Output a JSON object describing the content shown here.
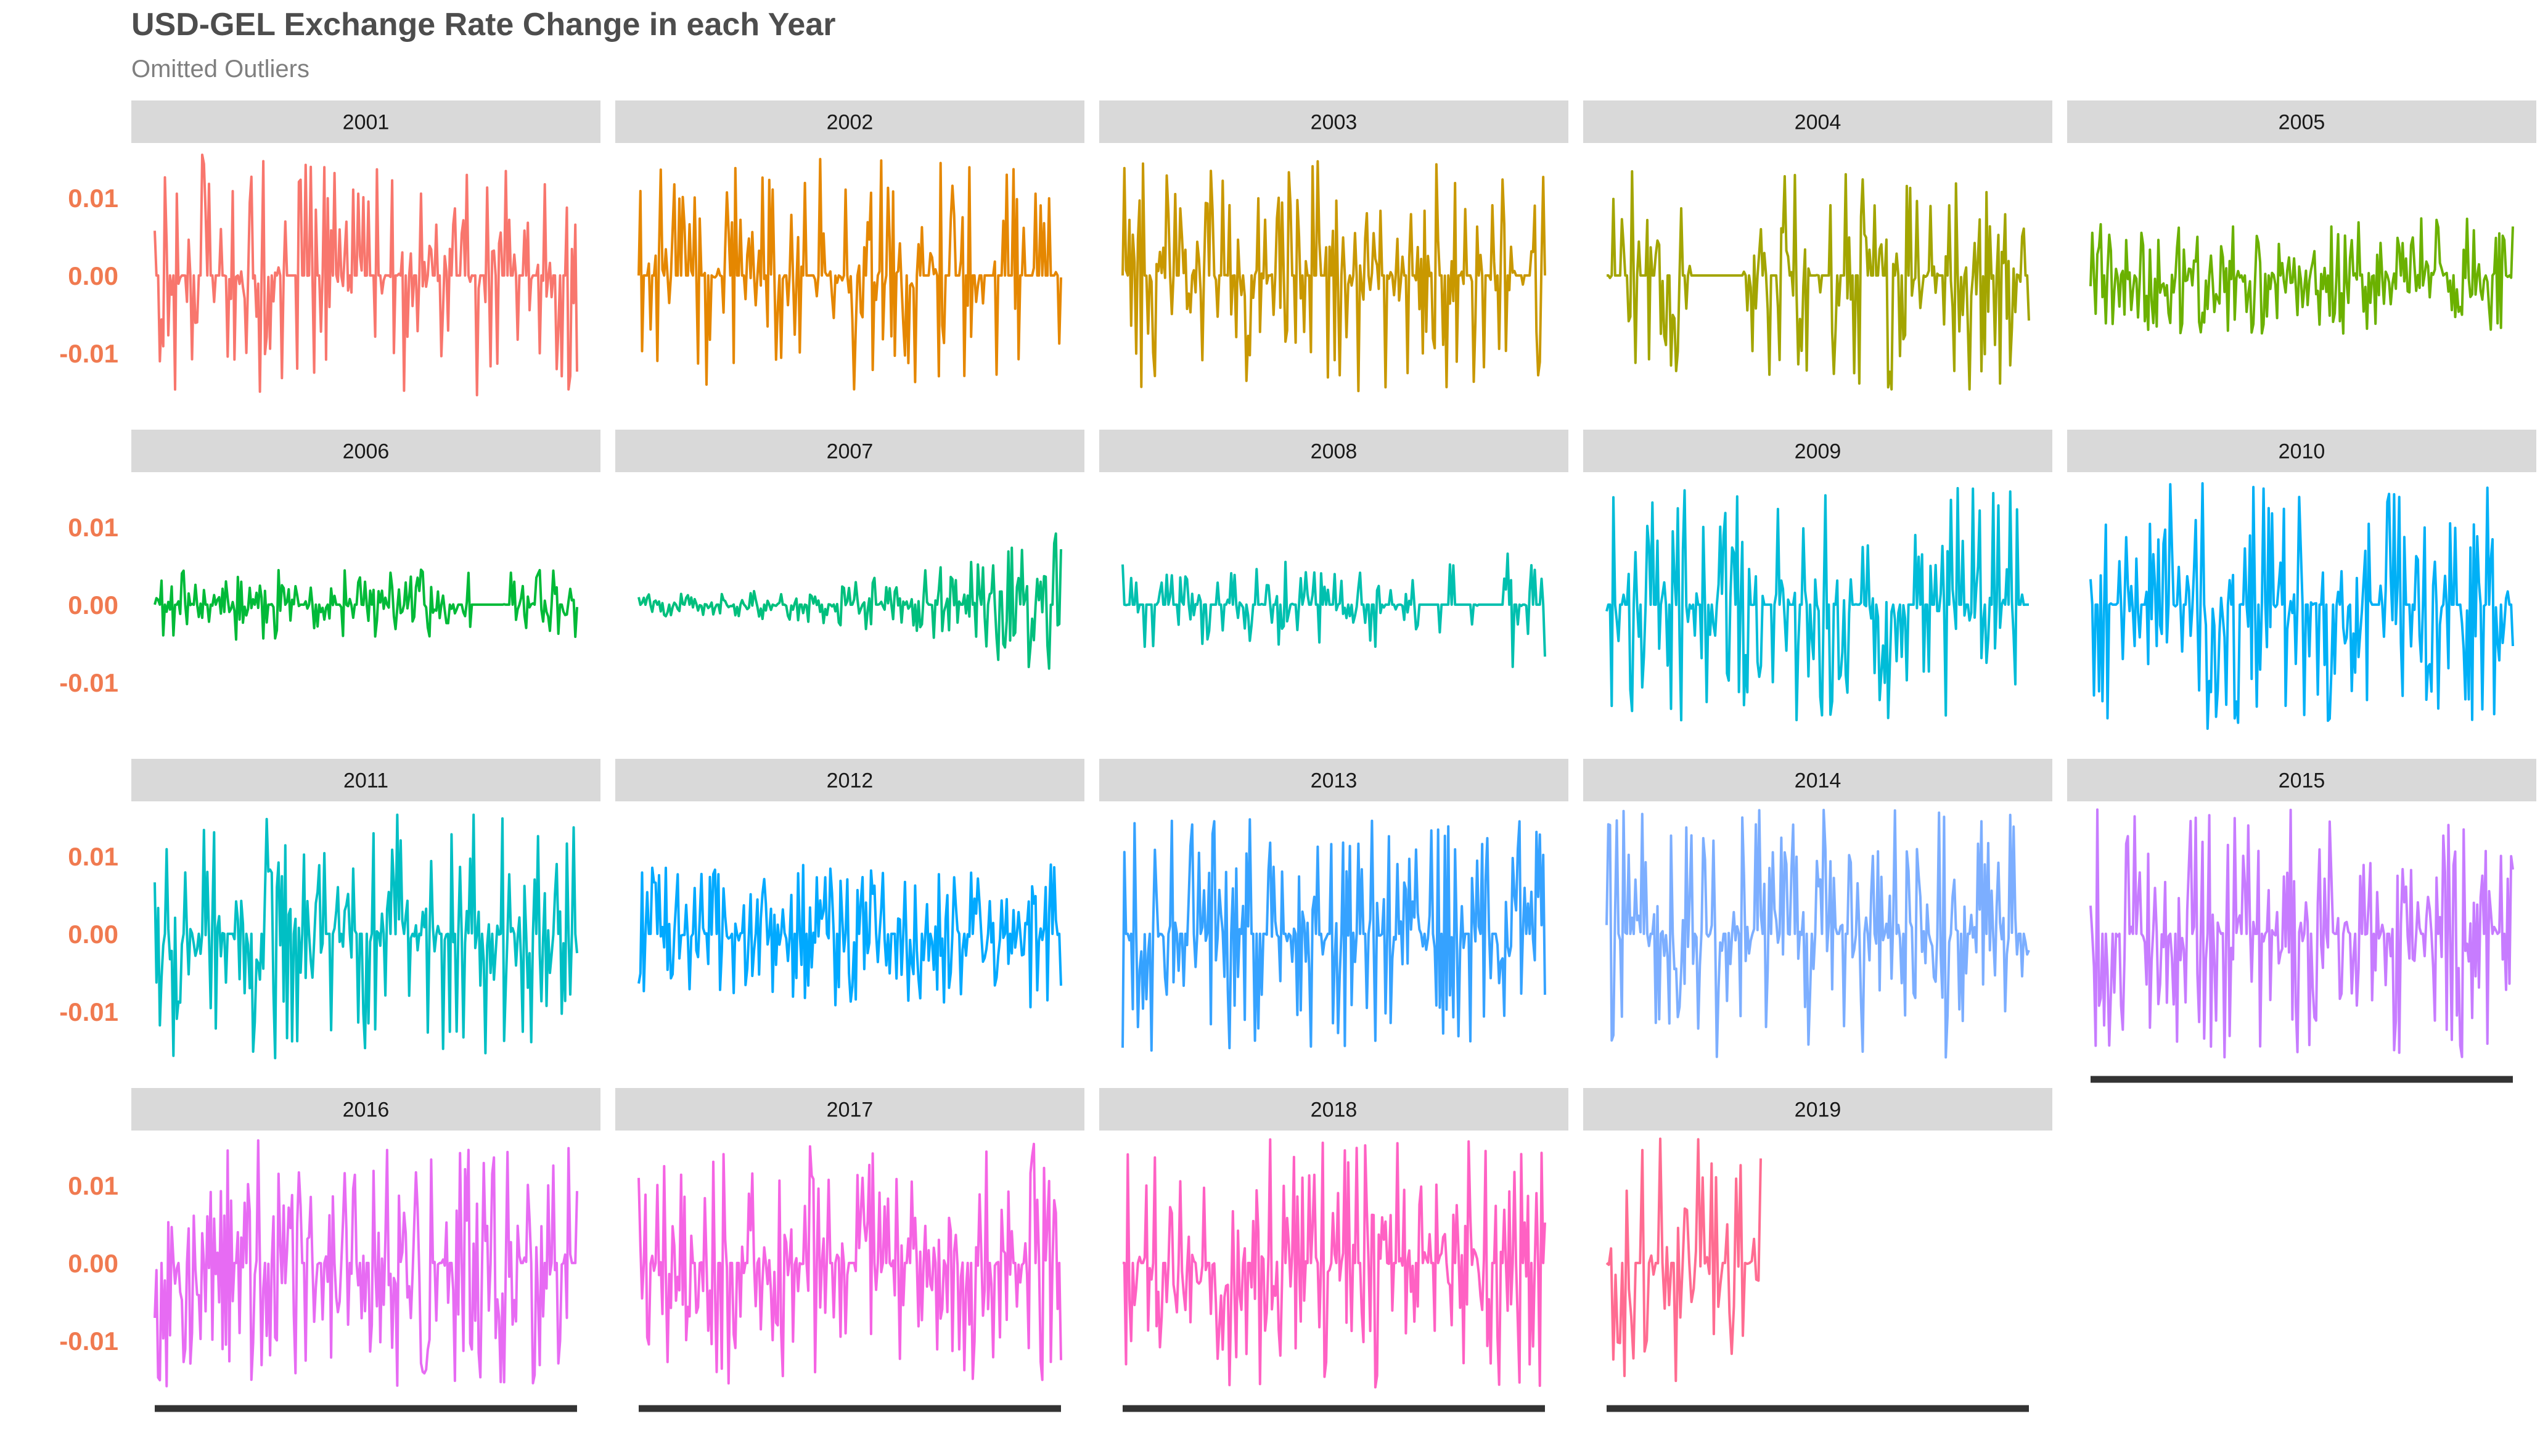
{
  "title": "USD-GEL Exchange Rate Change in each Year",
  "subtitle": "Omitted Outliers",
  "chart_data": {
    "type": "line",
    "title": "USD-GEL Exchange Rate Change in each Year",
    "subtitle": "Omitted Outliers",
    "xlabel": "",
    "ylabel": "",
    "ylim": [
      -0.0165,
      0.0168
    ],
    "y_ticks": [
      {
        "value": 0.01,
        "label": "0.01"
      },
      {
        "value": 0.0,
        "label": "0.00"
      },
      {
        "value": -0.01,
        "label": "-0.01"
      }
    ],
    "grid": false,
    "legend": "none",
    "facet_wrap": {
      "ncol": 5,
      "nrow": 4
    },
    "panels": [
      {
        "year": "2001",
        "color": "#F8766D",
        "amplitude": 0.016,
        "density": 0.65,
        "pattern": "uniform"
      },
      {
        "year": "2002",
        "color": "#E58700",
        "amplitude": 0.015,
        "density": 0.6,
        "pattern": "uniform"
      },
      {
        "year": "2003",
        "color": "#C99800",
        "amplitude": 0.015,
        "density": 0.7,
        "pattern": "uniform"
      },
      {
        "year": "2004",
        "color": "#A3A500",
        "amplitude": 0.015,
        "density": 0.6,
        "pattern": "gap-start"
      },
      {
        "year": "2005",
        "color": "#6BB100",
        "amplitude": 0.0075,
        "density": 0.9,
        "pattern": "uniform"
      },
      {
        "year": "2006",
        "color": "#00BA38",
        "amplitude": 0.0045,
        "density": 0.85,
        "pattern": "flat-end"
      },
      {
        "year": "2007",
        "color": "#00BF7D",
        "amplitude": 0.01,
        "density": 0.9,
        "pattern": "rising"
      },
      {
        "year": "2008",
        "color": "#00C0AF",
        "amplitude": 0.01,
        "density": 0.6,
        "pattern": "spike-end"
      },
      {
        "year": "2009",
        "color": "#00BCD8",
        "amplitude": 0.015,
        "density": 0.7,
        "pattern": "uniform"
      },
      {
        "year": "2010",
        "color": "#00B0F6",
        "amplitude": 0.016,
        "density": 0.75,
        "pattern": "uniform"
      },
      {
        "year": "2011",
        "color": "#00BFC4",
        "amplitude": 0.016,
        "density": 0.75,
        "pattern": "uniform"
      },
      {
        "year": "2012",
        "color": "#00A9FF",
        "amplitude": 0.0095,
        "density": 0.85,
        "pattern": "uniform"
      },
      {
        "year": "2013",
        "color": "#35A2FF",
        "amplitude": 0.015,
        "density": 0.8,
        "pattern": "uniform"
      },
      {
        "year": "2014",
        "color": "#7CAEFF",
        "amplitude": 0.016,
        "density": 0.8,
        "pattern": "uniform"
      },
      {
        "year": "2015",
        "color": "#C77CFF",
        "amplitude": 0.016,
        "density": 0.85,
        "pattern": "uniform"
      },
      {
        "year": "2016",
        "color": "#E76BF3",
        "amplitude": 0.016,
        "density": 0.85,
        "pattern": "uniform"
      },
      {
        "year": "2017",
        "color": "#F564E3",
        "amplitude": 0.0155,
        "density": 0.85,
        "pattern": "uniform"
      },
      {
        "year": "2018",
        "color": "#FF61C3",
        "amplitude": 0.016,
        "density": 0.85,
        "pattern": "uniform"
      },
      {
        "year": "2019",
        "color": "#FF6C91",
        "amplitude": 0.016,
        "density": 0.85,
        "pattern": "short"
      }
    ],
    "colors": {
      "strip_background": "#d9d9d9",
      "strip_text": "#1a1a1a",
      "tick_label": "#f07a50",
      "axis_line": "#333333"
    }
  }
}
